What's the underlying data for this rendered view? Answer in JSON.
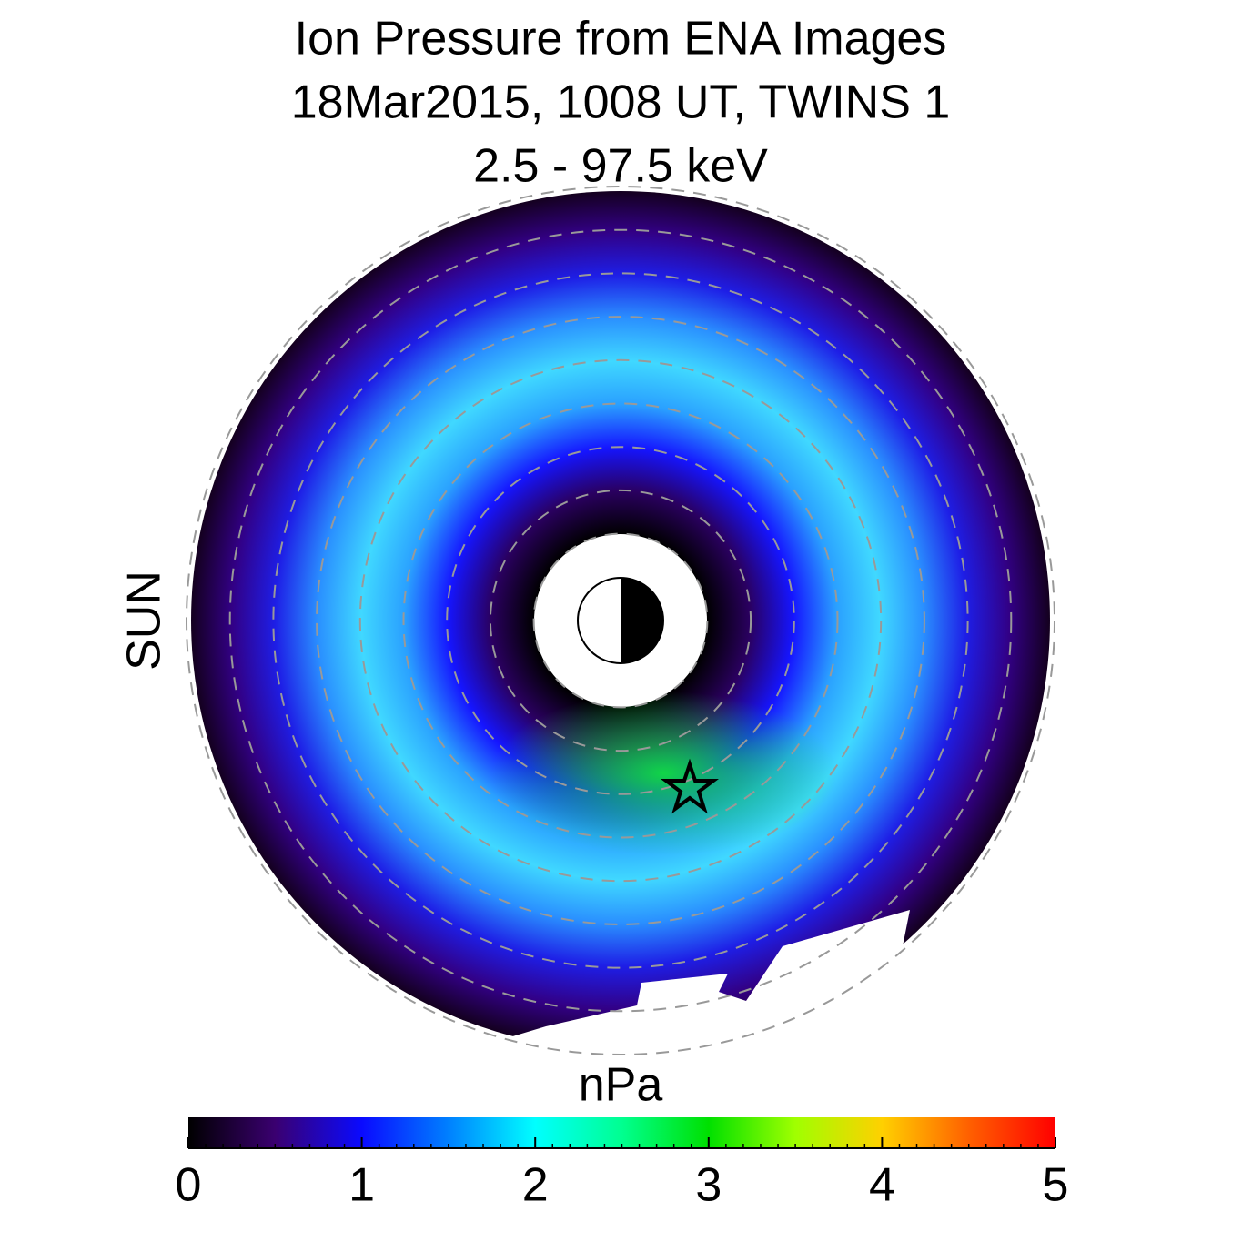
{
  "chart_data": {
    "type": "polar_image",
    "title_lines": [
      "Ion Pressure from  ENA Images",
      "18Mar2015, 1008 UT,  TWINS 1",
      "2.5 - 97.5 keV"
    ],
    "side_label": "SUN",
    "side_label_color": "#f5a000",
    "colorbar_label": "nPa",
    "clim": [
      0,
      5
    ],
    "cticks": [
      0,
      1,
      2,
      3,
      4,
      5
    ],
    "colormap": [
      "#000000",
      "#3a0070",
      "#0a0aff",
      "#0080ff",
      "#00ffff",
      "#00ff90",
      "#00e000",
      "#a0ff00",
      "#ffd000",
      "#ff6000",
      "#ff0000"
    ]
  }
}
